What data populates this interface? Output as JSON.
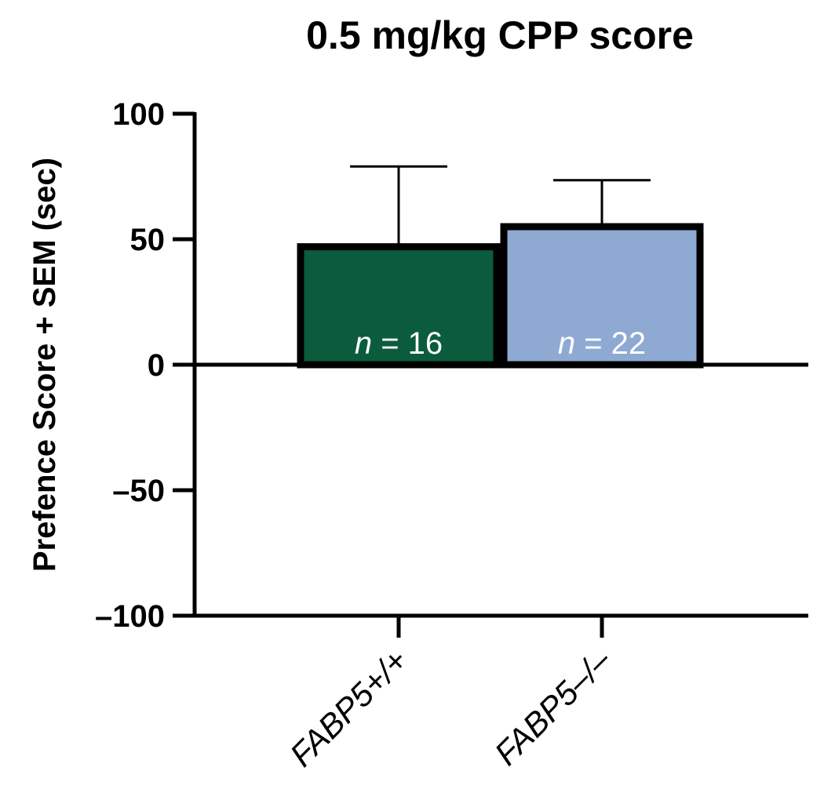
{
  "chart_data": {
    "type": "bar",
    "title": "0.5 mg/kg CPP score",
    "ylabel": "Prefence Score + SEM (sec)",
    "xlabel": "",
    "ylim": [
      -100,
      100
    ],
    "yticks": [
      100,
      50,
      0,
      -50,
      -100
    ],
    "ytick_labels": [
      "100",
      "50",
      "0",
      "–50",
      "–100"
    ],
    "categories": [
      "FABP5+/+",
      "FABP5–/–"
    ],
    "values": [
      47,
      55
    ],
    "errors": [
      32,
      18.5
    ],
    "bar_colors": [
      "#0a5c3c",
      "#8eaad3"
    ],
    "bar_outline": "#000000",
    "n_labels": [
      {
        "var": "n",
        "text": " = 16"
      },
      {
        "var": "n",
        "text": " = 22"
      }
    ],
    "grid": false,
    "legend": "none"
  }
}
